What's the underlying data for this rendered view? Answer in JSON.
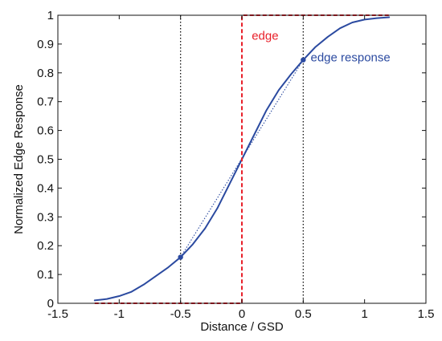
{
  "chart_data": {
    "type": "line",
    "title": "",
    "xlabel": "Distance / GSD",
    "ylabel": "Normalized Edge Response",
    "xlim": [
      -1.5,
      1.5
    ],
    "ylim": [
      0,
      1
    ],
    "xticks": [
      -1.5,
      -1,
      -0.5,
      0,
      0.5,
      1,
      1.5
    ],
    "xtick_labels": [
      "-1.5",
      "-1",
      "-0.5",
      "0",
      "0.5",
      "1",
      "1.5"
    ],
    "yticks": [
      0,
      0.1,
      0.2,
      0.3,
      0.4,
      0.5,
      0.6,
      0.7,
      0.8,
      0.9,
      1
    ],
    "ytick_labels": [
      "0",
      "0.1",
      "0.2",
      "0.3",
      "0.4",
      "0.5",
      "0.6",
      "0.7",
      "0.8",
      "0.9",
      "1"
    ],
    "grid": false,
    "colors": {
      "edge_response": "#2b4aa0",
      "edge": "#e8202a",
      "reference_lines": "#111111"
    },
    "series": [
      {
        "name": "edge response",
        "style": "solid",
        "x": [
          -1.2,
          -1.1,
          -1.0,
          -0.9,
          -0.8,
          -0.7,
          -0.6,
          -0.5,
          -0.4,
          -0.3,
          -0.2,
          -0.1,
          0.0,
          0.1,
          0.2,
          0.3,
          0.4,
          0.5,
          0.6,
          0.7,
          0.8,
          0.9,
          1.0,
          1.1,
          1.2
        ],
        "y": [
          0.01,
          0.015,
          0.025,
          0.04,
          0.065,
          0.095,
          0.125,
          0.16,
          0.205,
          0.26,
          0.33,
          0.415,
          0.5,
          0.585,
          0.67,
          0.74,
          0.795,
          0.845,
          0.89,
          0.925,
          0.955,
          0.975,
          0.985,
          0.99,
          0.993
        ]
      },
      {
        "name": "",
        "style": "dotted",
        "x": [
          -0.5,
          0.5
        ],
        "y": [
          0.16,
          0.845
        ]
      },
      {
        "name": "edge",
        "style": "dashed",
        "x": [
          -1.2,
          0,
          0,
          1.2
        ],
        "y": [
          0,
          0,
          1,
          1
        ]
      }
    ],
    "points": [
      {
        "x": -0.5,
        "y": 0.16
      },
      {
        "x": 0.5,
        "y": 0.845
      }
    ],
    "vertical_lines": [
      -0.5,
      0.5
    ],
    "annotations": [
      {
        "text": "edge",
        "x": 0.08,
        "y": 0.915,
        "color": "#e8202a"
      },
      {
        "text": "edge response",
        "x": 0.56,
        "y": 0.84,
        "color": "#2b4aa0"
      }
    ]
  }
}
